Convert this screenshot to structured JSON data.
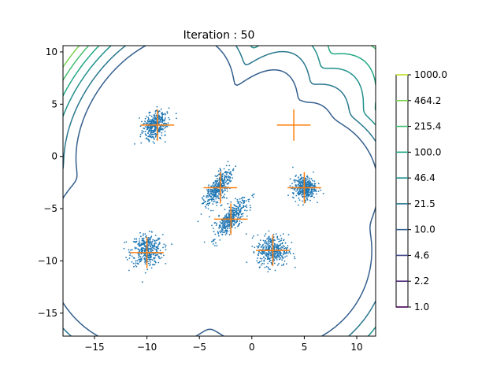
{
  "chart_data": {
    "type": "contour",
    "title": "Iteration : 50",
    "xlim": [
      -18,
      11.8
    ],
    "ylim": [
      -17.2,
      10.6
    ],
    "x_ticks": [
      -15,
      -10,
      -5,
      0,
      5,
      10
    ],
    "y_ticks": [
      -15,
      -10,
      -5,
      0,
      5,
      10
    ],
    "x_tick_labels": [
      "−15",
      "−10",
      "−5",
      "0",
      "5",
      "10"
    ],
    "y_tick_labels": [
      "−15",
      "−10",
      "−5",
      "0",
      "5",
      "10"
    ],
    "colorbar": {
      "levels": [
        1.0,
        2.2,
        4.6,
        10.0,
        21.5,
        46.4,
        100.0,
        215.4,
        464.2,
        1000.0
      ],
      "labels": [
        "1.0",
        "2.2",
        "4.6",
        "10.0",
        "21.5",
        "46.4",
        "100.0",
        "215.4",
        "464.2",
        "1000.0"
      ],
      "colors": [
        "#440154",
        "#482475",
        "#414487",
        "#355f8d",
        "#2a788e",
        "#21918c",
        "#22a884",
        "#44bf70",
        "#7ad151",
        "#bddf26"
      ]
    },
    "clusters": [
      {
        "cx": -9.2,
        "cy": 3.0,
        "sx": 0.75,
        "sy": 0.5,
        "angle": 55
      },
      {
        "cx": -10.0,
        "cy": -9.0,
        "sx": 0.75,
        "sy": 0.75,
        "angle": 0
      },
      {
        "cx": -3.2,
        "cy": -3.0,
        "sx": 1.0,
        "sy": 0.38,
        "angle": 60
      },
      {
        "cx": -2.0,
        "cy": -6.0,
        "sx": 1.1,
        "sy": 0.4,
        "angle": 50
      },
      {
        "cx": 2.0,
        "cy": -9.0,
        "sx": 0.75,
        "sy": 0.75,
        "angle": 0
      },
      {
        "cx": 5.0,
        "cy": -3.0,
        "sx": 0.55,
        "sy": 0.55,
        "angle": 0
      }
    ],
    "component_centers": [
      {
        "x": -9.0,
        "y": 3.0,
        "hx": 1.6,
        "vy": 1.5
      },
      {
        "x": -10.0,
        "y": -9.2,
        "hx": 1.6,
        "vy": 1.5
      },
      {
        "x": -3.0,
        "y": -3.0,
        "hx": 1.6,
        "vy": 1.5
      },
      {
        "x": -2.0,
        "y": -6.0,
        "hx": 1.6,
        "vy": 1.5
      },
      {
        "x": 2.0,
        "y": -9.0,
        "hx": 1.6,
        "vy": 1.5
      },
      {
        "x": 5.0,
        "y": -3.0,
        "hx": 1.6,
        "vy": 1.5
      },
      {
        "x": 4.0,
        "y": 3.0,
        "hx": 1.6,
        "vy": 1.5
      }
    ]
  }
}
